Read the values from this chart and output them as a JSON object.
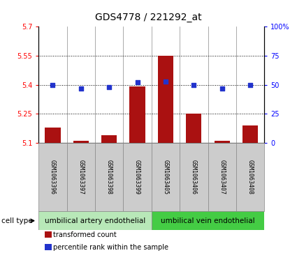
{
  "title": "GDS4778 / 221292_at",
  "samples": [
    "GSM1063396",
    "GSM1063397",
    "GSM1063398",
    "GSM1063399",
    "GSM1063405",
    "GSM1063406",
    "GSM1063407",
    "GSM1063408"
  ],
  "red_values": [
    5.18,
    5.11,
    5.14,
    5.39,
    5.55,
    5.25,
    5.11,
    5.19
  ],
  "blue_values": [
    50,
    47,
    48,
    52,
    53,
    50,
    47,
    50
  ],
  "ylim_left": [
    5.1,
    5.7
  ],
  "ylim_right": [
    0,
    100
  ],
  "yticks_left": [
    5.1,
    5.25,
    5.4,
    5.55,
    5.7
  ],
  "yticks_right": [
    0,
    25,
    50,
    75,
    100
  ],
  "ytick_labels_right": [
    "0",
    "25",
    "50",
    "75",
    "100%"
  ],
  "hlines": [
    5.25,
    5.4,
    5.55
  ],
  "group1_label": "umbilical artery endothelial",
  "group2_label": "umbilical vein endothelial",
  "group1_samples": [
    0,
    1,
    2,
    3
  ],
  "group2_samples": [
    4,
    5,
    6,
    7
  ],
  "cell_type_label": "cell type",
  "legend_red": "transformed count",
  "legend_blue": "percentile rank within the sample",
  "bar_color": "#aa1111",
  "dot_color": "#2233cc",
  "group1_color": "#b8e8b8",
  "group2_color": "#44cc44",
  "sample_box_color": "#cccccc",
  "bar_width": 0.55,
  "title_fontsize": 10,
  "tick_fontsize": 7,
  "sample_fontsize": 6,
  "group_fontsize": 7.5,
  "legend_fontsize": 7,
  "cell_type_fontsize": 7.5
}
